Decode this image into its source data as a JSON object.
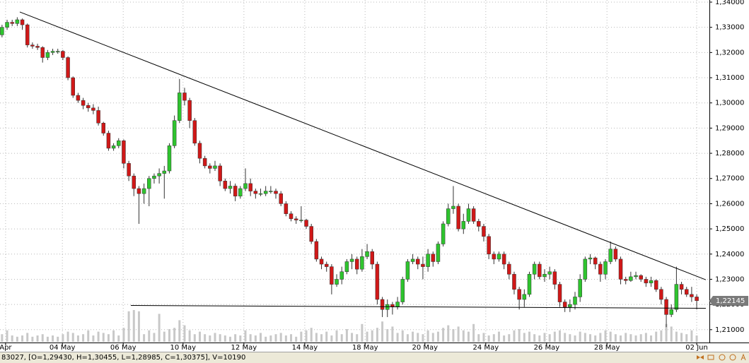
{
  "chart_data": {
    "type": "candlestick",
    "up_color": "#2ec42e",
    "down_color": "#d01818",
    "volume_color": "#c8c8c8",
    "line_color": "#000000",
    "open": [
      1.327,
      1.33,
      1.332,
      1.3315,
      1.333,
      1.331,
      1.323,
      1.3225,
      1.322,
      1.318,
      1.32,
      1.3205,
      1.3205,
      1.318,
      1.31,
      1.303,
      1.301,
      1.299,
      1.298,
      1.297,
      1.292,
      1.288,
      1.282,
      1.283,
      1.285,
      1.276,
      1.271,
      1.266,
      1.264,
      1.266,
      1.27,
      1.271,
      1.272,
      1.273,
      1.283,
      1.293,
      1.304,
      1.301,
      1.293,
      1.284,
      1.278,
      1.275,
      1.274,
      1.275,
      1.269,
      1.266,
      1.267,
      1.263,
      1.266,
      1.268,
      1.265,
      1.264,
      1.264,
      1.265,
      1.265,
      1.264,
      1.26,
      1.256,
      1.254,
      1.2535,
      1.2535,
      1.251,
      1.245,
      1.238,
      1.236,
      1.235,
      1.228,
      1.23,
      1.233,
      1.237,
      1.238,
      1.234,
      1.239,
      1.241,
      1.236,
      1.222,
      1.218,
      1.22,
      1.219,
      1.221,
      1.23,
      1.237,
      1.238,
      1.236,
      1.235,
      1.24,
      1.237,
      1.244,
      1.252,
      1.258,
      1.259,
      1.25,
      1.253,
      1.258,
      1.253,
      1.251,
      1.247,
      1.24,
      1.238,
      1.24,
      1.236,
      1.232,
      1.226,
      1.222,
      1.224,
      1.232,
      1.236,
      1.231,
      1.232,
      1.233,
      1.228,
      1.221,
      1.219,
      1.22,
      1.223,
      1.23,
      1.238,
      1.2385,
      1.236,
      1.232,
      1.237,
      1.242,
      1.238,
      1.23,
      1.2295,
      1.231,
      1.2315,
      1.23,
      1.2285,
      1.2295,
      1.226,
      1.222,
      1.216,
      1.218,
      1.228,
      1.226,
      1.224,
      1.223
    ],
    "high": [
      1.331,
      1.333,
      1.333,
      1.334,
      1.3335,
      1.3315,
      1.324,
      1.3235,
      1.3225,
      1.321,
      1.3215,
      1.3215,
      1.321,
      1.3185,
      1.3105,
      1.304,
      1.302,
      1.3,
      1.2995,
      1.2985,
      1.2925,
      1.289,
      1.284,
      1.286,
      1.2855,
      1.277,
      1.272,
      1.267,
      1.268,
      1.271,
      1.272,
      1.274,
      1.275,
      1.284,
      1.295,
      1.3095,
      1.306,
      1.302,
      1.294,
      1.285,
      1.279,
      1.276,
      1.277,
      1.276,
      1.27,
      1.269,
      1.268,
      1.267,
      1.274,
      1.27,
      1.266,
      1.266,
      1.267,
      1.267,
      1.266,
      1.265,
      1.261,
      1.257,
      1.255,
      1.259,
      1.254,
      1.252,
      1.246,
      1.239,
      1.237,
      1.236,
      1.232,
      1.235,
      1.238,
      1.24,
      1.239,
      1.242,
      1.244,
      1.242,
      1.237,
      1.223,
      1.222,
      1.221,
      1.223,
      1.231,
      1.238,
      1.24,
      1.239,
      1.239,
      1.242,
      1.241,
      1.245,
      1.253,
      1.26,
      1.267,
      1.26,
      1.256,
      1.26,
      1.259,
      1.254,
      1.252,
      1.248,
      1.241,
      1.241,
      1.241,
      1.237,
      1.233,
      1.227,
      1.226,
      1.233,
      1.237,
      1.237,
      1.234,
      1.235,
      1.234,
      1.229,
      1.222,
      1.222,
      1.225,
      1.232,
      1.239,
      1.24,
      1.239,
      1.237,
      1.238,
      1.245,
      1.243,
      1.239,
      1.231,
      1.233,
      1.233,
      1.232,
      1.231,
      1.231,
      1.23,
      1.227,
      1.223,
      1.22,
      1.235,
      1.229,
      1.227,
      1.227,
      1.224
    ],
    "low": [
      1.326,
      1.329,
      1.3305,
      1.3305,
      1.329,
      1.322,
      1.3215,
      1.321,
      1.316,
      1.317,
      1.319,
      1.3195,
      1.317,
      1.309,
      1.302,
      1.3,
      1.2975,
      1.2965,
      1.2955,
      1.291,
      1.287,
      1.281,
      1.281,
      1.282,
      1.274,
      1.269,
      1.263,
      1.252,
      1.26,
      1.259,
      1.268,
      1.268,
      1.262,
      1.272,
      1.282,
      1.292,
      1.299,
      1.29,
      1.283,
      1.276,
      1.274,
      1.272,
      1.273,
      1.267,
      1.265,
      1.264,
      1.261,
      1.262,
      1.265,
      1.263,
      1.262,
      1.263,
      1.263,
      1.264,
      1.262,
      1.259,
      1.255,
      1.253,
      1.252,
      1.2525,
      1.25,
      1.244,
      1.237,
      1.234,
      1.233,
      1.224,
      1.227,
      1.228,
      1.232,
      1.234,
      1.232,
      1.233,
      1.238,
      1.234,
      1.22,
      1.215,
      1.215,
      1.216,
      1.218,
      1.22,
      1.229,
      1.236,
      1.234,
      1.23,
      1.233,
      1.235,
      1.236,
      1.243,
      1.251,
      1.256,
      1.249,
      1.248,
      1.252,
      1.252,
      1.249,
      1.245,
      1.238,
      1.236,
      1.237,
      1.234,
      1.23,
      1.224,
      1.218,
      1.219,
      1.223,
      1.23,
      1.23,
      1.229,
      1.23,
      1.226,
      1.219,
      1.217,
      1.217,
      1.218,
      1.221,
      1.229,
      1.236,
      1.234,
      1.229,
      1.23,
      1.236,
      1.237,
      1.228,
      1.228,
      1.229,
      1.23,
      1.229,
      1.227,
      1.227,
      1.225,
      1.22,
      1.211,
      1.215,
      1.217,
      1.224,
      1.223,
      1.221,
      1.218
    ],
    "close": [
      1.33,
      1.332,
      1.3315,
      1.333,
      1.331,
      1.323,
      1.3225,
      1.322,
      1.318,
      1.32,
      1.3205,
      1.3205,
      1.318,
      1.31,
      1.303,
      1.301,
      1.299,
      1.298,
      1.297,
      1.292,
      1.288,
      1.282,
      1.283,
      1.285,
      1.276,
      1.271,
      1.266,
      1.264,
      1.266,
      1.27,
      1.271,
      1.272,
      1.273,
      1.283,
      1.293,
      1.304,
      1.301,
      1.293,
      1.284,
      1.278,
      1.275,
      1.274,
      1.275,
      1.269,
      1.266,
      1.267,
      1.263,
      1.266,
      1.268,
      1.265,
      1.264,
      1.264,
      1.265,
      1.265,
      1.264,
      1.26,
      1.256,
      1.254,
      1.2535,
      1.2535,
      1.251,
      1.245,
      1.238,
      1.236,
      1.235,
      1.228,
      1.23,
      1.233,
      1.237,
      1.238,
      1.234,
      1.239,
      1.241,
      1.236,
      1.222,
      1.218,
      1.22,
      1.219,
      1.221,
      1.23,
      1.237,
      1.238,
      1.236,
      1.235,
      1.24,
      1.237,
      1.244,
      1.252,
      1.258,
      1.259,
      1.25,
      1.253,
      1.258,
      1.253,
      1.251,
      1.247,
      1.24,
      1.238,
      1.24,
      1.236,
      1.232,
      1.226,
      1.222,
      1.224,
      1.232,
      1.236,
      1.231,
      1.232,
      1.233,
      1.228,
      1.221,
      1.219,
      1.22,
      1.223,
      1.23,
      1.238,
      1.2385,
      1.236,
      1.232,
      1.237,
      1.242,
      1.238,
      1.23,
      1.2295,
      1.231,
      1.2315,
      1.23,
      1.2285,
      1.2295,
      1.226,
      1.222,
      1.216,
      1.218,
      1.228,
      1.226,
      1.224,
      1.223,
      1.2215
    ],
    "volume": [
      6000,
      9000,
      5000,
      4000,
      5000,
      7000,
      4000,
      5000,
      6000,
      4000,
      5000,
      4000,
      6000,
      8000,
      7000,
      5000,
      6000,
      9000,
      5000,
      8000,
      7000,
      6000,
      9000,
      5000,
      11000,
      24000,
      25000,
      24000,
      6000,
      9000,
      7000,
      22000,
      8000,
      10000,
      11000,
      17000,
      13000,
      9000,
      6000,
      8000,
      6000,
      5000,
      7000,
      6000,
      5000,
      4000,
      6000,
      5000,
      9000,
      6000,
      5000,
      7000,
      4000,
      5000,
      6000,
      7000,
      5000,
      6000,
      4000,
      8000,
      9000,
      11000,
      7000,
      6000,
      8000,
      5000,
      9000,
      6000,
      10000,
      7000,
      6000,
      14000,
      8000,
      9000,
      11000,
      16000,
      10000,
      12000,
      7000,
      9000,
      6000,
      8000,
      7000,
      6000,
      9000,
      7000,
      8000,
      11000,
      13000,
      10000,
      12000,
      9000,
      8000,
      14000,
      6000,
      7000,
      5000,
      6000,
      8000,
      5000,
      6000,
      9000,
      10000,
      7000,
      8000,
      6000,
      5000,
      7000,
      6000,
      8000,
      9000,
      7000,
      6000,
      5000,
      8000,
      7000,
      6000,
      5000,
      7000,
      9000,
      8000,
      6000,
      5000,
      7000,
      6000,
      5000,
      6000,
      7000,
      5000,
      8000,
      9000,
      14000,
      12000,
      8000,
      7000,
      6000,
      9000,
      5000
    ],
    "vlim": [
      0,
      25000
    ],
    "xlim": [
      -0.4,
      139.5
    ],
    "xticks": [
      {
        "value": 0.7,
        "label": "Apr"
      },
      {
        "value": 11.9,
        "label": "04 May"
      },
      {
        "value": 23.9,
        "label": "06 May"
      },
      {
        "value": 35.7,
        "label": "10 May"
      },
      {
        "value": 47.7,
        "label": "12 May"
      },
      {
        "value": 59.7,
        "label": "14 May"
      },
      {
        "value": 71.6,
        "label": "18 May"
      },
      {
        "value": 83.4,
        "label": "20 May"
      },
      {
        "value": 95.4,
        "label": "24 May"
      },
      {
        "value": 107.4,
        "label": "26 May"
      },
      {
        "value": 119.3,
        "label": "28 May"
      },
      {
        "value": 137,
        "label": "02 Jun"
      }
    ],
    "ylim": [
      1.2049,
      1.34
    ],
    "yticks": [
      {
        "value": 1.21,
        "label": "1,21000"
      },
      {
        "value": 1.22,
        "label": "1,22000"
      },
      {
        "value": 1.23,
        "label": "1,23000"
      },
      {
        "value": 1.24,
        "label": "1,24000"
      },
      {
        "value": 1.25,
        "label": "1,25000"
      },
      {
        "value": 1.26,
        "label": "1,26000"
      },
      {
        "value": 1.27,
        "label": "1,27000"
      },
      {
        "value": 1.28,
        "label": "1,28000"
      },
      {
        "value": 1.29,
        "label": "1,29000"
      },
      {
        "value": 1.3,
        "label": "1,30000"
      },
      {
        "value": 1.31,
        "label": "1,31000"
      },
      {
        "value": 1.32,
        "label": "1,32000"
      },
      {
        "value": 1.33,
        "label": "1,33000"
      },
      {
        "value": 1.34,
        "label": "1,34000"
      }
    ],
    "grid": true,
    "lines": [
      {
        "x": [
          3.5,
          138.8
        ],
        "y": [
          1.3361,
          1.2298
        ]
      },
      {
        "x": [
          25.4,
          138.8
        ],
        "y": [
          1.2196,
          1.2185
        ]
      }
    ],
    "last_price": {
      "value": 1.22145,
      "label": "1,22145"
    },
    "status": "83027, [O=1,29430, H=1,30455, L=1,28985, C=1,30375], V=10190"
  }
}
